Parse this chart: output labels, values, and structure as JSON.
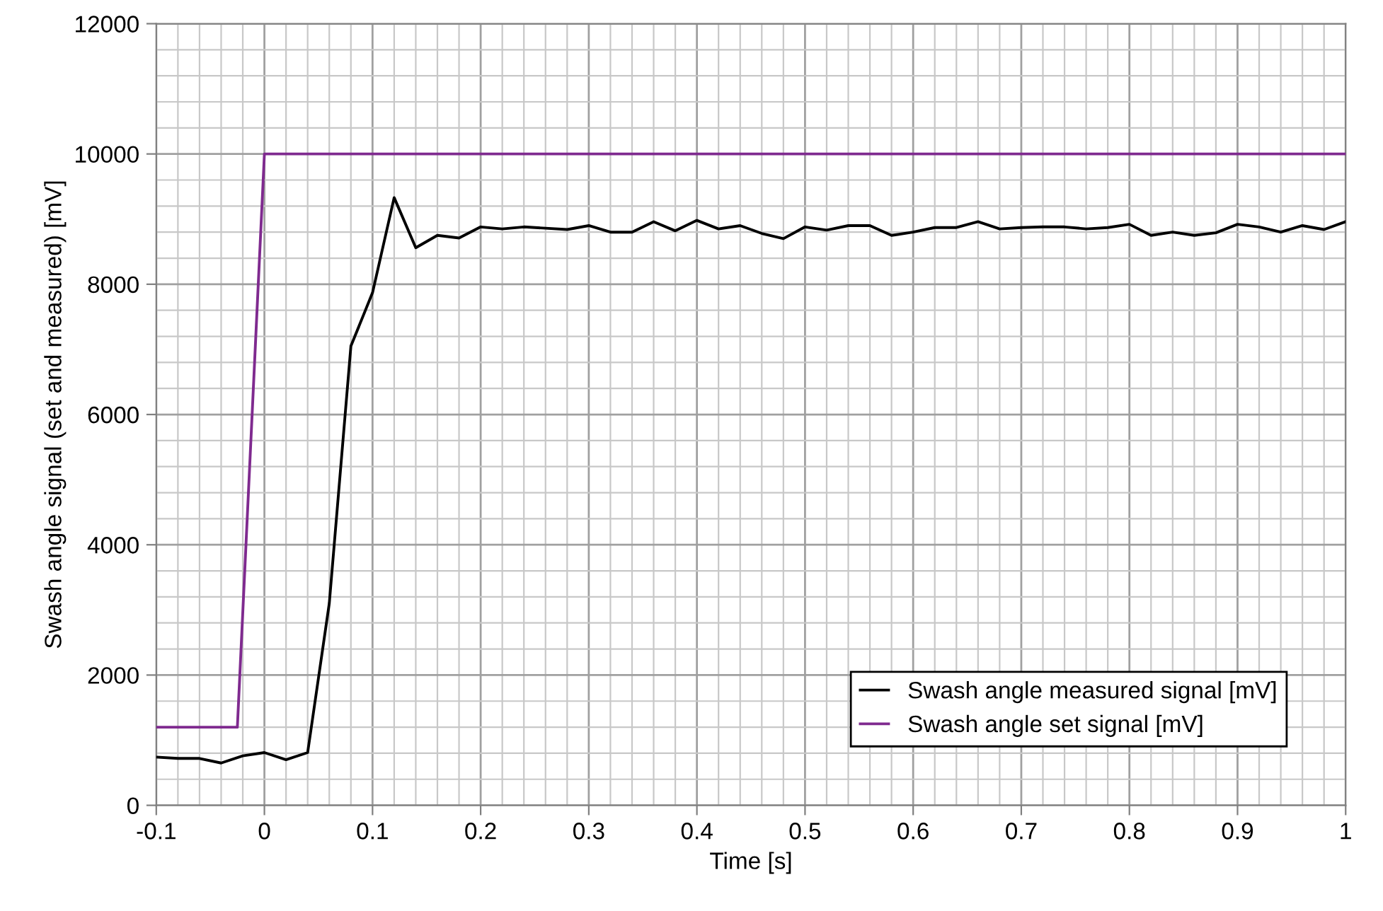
{
  "chart_data": {
    "type": "line",
    "xlabel": "Time [s]",
    "ylabel": "Swash angle signal (set and measured) [mV]",
    "xlim": [
      -0.1,
      1
    ],
    "xticks": [
      -0.1,
      0,
      0.1,
      0.2,
      0.3,
      0.4,
      0.5,
      0.6,
      0.7,
      0.8,
      0.9,
      1
    ],
    "ylim": [
      0,
      12000
    ],
    "yticks": [
      0,
      2000,
      4000,
      6000,
      8000,
      10000,
      12000
    ],
    "grid": true,
    "legend": "bottom right",
    "marker": "none",
    "line_style": "solid",
    "series": [
      {
        "name": "Swash angle measured signal [mV]",
        "color": "#000000",
        "x": [
          -0.1,
          -0.08,
          -0.06,
          -0.04,
          -0.02,
          0,
          0.02,
          0.04,
          0.06,
          0.08,
          0.1,
          0.12,
          0.14,
          0.16,
          0.18,
          0.2,
          0.22,
          0.24,
          0.26,
          0.28,
          0.3,
          0.32,
          0.34,
          0.36,
          0.38,
          0.4,
          0.42,
          0.44,
          0.46,
          0.48,
          0.5,
          0.52,
          0.54,
          0.56,
          0.58,
          0.6,
          0.62,
          0.64,
          0.66,
          0.68,
          0.7,
          0.72,
          0.74,
          0.76,
          0.78,
          0.8,
          0.82,
          0.84,
          0.86,
          0.88,
          0.9,
          0.92,
          0.94,
          0.96,
          0.98,
          1.0
        ],
        "values": [
          740,
          720,
          720,
          650,
          760,
          810,
          700,
          810,
          3100,
          7050,
          7870,
          9330,
          8560,
          8750,
          8710,
          8880,
          8850,
          8880,
          8860,
          8840,
          8900,
          8800,
          8800,
          8960,
          8820,
          8980,
          8850,
          8900,
          8780,
          8700,
          8880,
          8830,
          8900,
          8900,
          8750,
          8800,
          8870,
          8870,
          8960,
          8850,
          8870,
          8880,
          8880,
          8850,
          8870,
          8920,
          8750,
          8800,
          8750,
          8790,
          8920,
          8880,
          8800,
          8900,
          8840,
          8960
        ]
      },
      {
        "name": "Swash angle set signal [mV]",
        "color": "#7f2a8f",
        "x": [
          -0.1,
          -0.025,
          0,
          1
        ],
        "values": [
          1200,
          1200,
          10000,
          10000
        ]
      }
    ]
  }
}
